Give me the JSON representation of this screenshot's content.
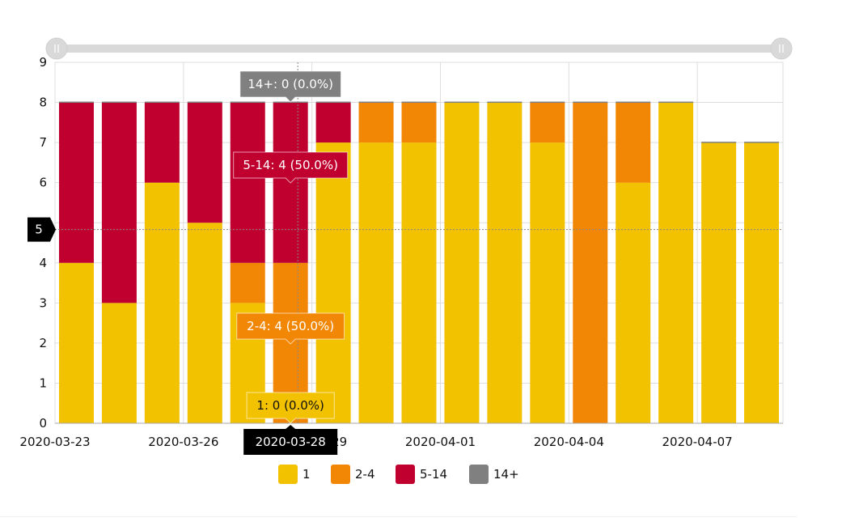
{
  "chart_data": {
    "type": "bar",
    "stacked": true,
    "title": "",
    "xlabel": "",
    "ylabel": "",
    "ylim": [
      0,
      9
    ],
    "y_ticks": [
      "0",
      "1",
      "2",
      "3",
      "4",
      "5",
      "6",
      "7",
      "8",
      "9"
    ],
    "categories": [
      "2020-03-23",
      "2020-03-24",
      "2020-03-25",
      "2020-03-26",
      "2020-03-27",
      "2020-03-28",
      "2020-03-29",
      "2020-03-30",
      "2020-03-31",
      "2020-04-01",
      "2020-04-02",
      "2020-04-03",
      "2020-04-04",
      "2020-04-05",
      "2020-04-06",
      "2020-04-07",
      "2020-04-08"
    ],
    "x_tick_labels": [
      "2020-03-23",
      "2020-03-26",
      "2020-03-29",
      "2020-04-01",
      "2020-04-04",
      "2020-04-07"
    ],
    "series": [
      {
        "name": "1",
        "color": "#f2c200",
        "values": [
          4,
          3,
          6,
          5,
          3,
          0,
          7,
          7,
          7,
          8,
          8,
          7,
          0,
          6,
          8,
          7,
          7
        ]
      },
      {
        "name": "2-4",
        "color": "#f28705",
        "values": [
          0,
          0,
          0,
          0,
          1,
          4,
          0,
          1,
          1,
          0,
          0,
          1,
          8,
          2,
          0,
          0,
          0
        ]
      },
      {
        "name": "5-14",
        "color": "#c0002f",
        "values": [
          4,
          5,
          2,
          3,
          4,
          4,
          1,
          0,
          0,
          0,
          0,
          0,
          0,
          0,
          0,
          0,
          0
        ]
      },
      {
        "name": "14+",
        "color": "#808080",
        "values": [
          0,
          0,
          0,
          0,
          0,
          0,
          0,
          0,
          0,
          0,
          0,
          0,
          0,
          0,
          0,
          0,
          0
        ]
      }
    ],
    "grid": true,
    "legend_position": "bottom",
    "range_selector": true,
    "crosshair": {
      "category": "2020-03-28",
      "y_value_label": "5"
    },
    "tooltips": [
      {
        "series": "14+",
        "text": "14+: 0 (0.0%)"
      },
      {
        "series": "5-14",
        "text": "5-14: 4 (50.0%)"
      },
      {
        "series": "2-4",
        "text": "2-4: 4 (50.0%)"
      },
      {
        "series": "1",
        "text": "1: 0 (0.0%)"
      }
    ]
  }
}
